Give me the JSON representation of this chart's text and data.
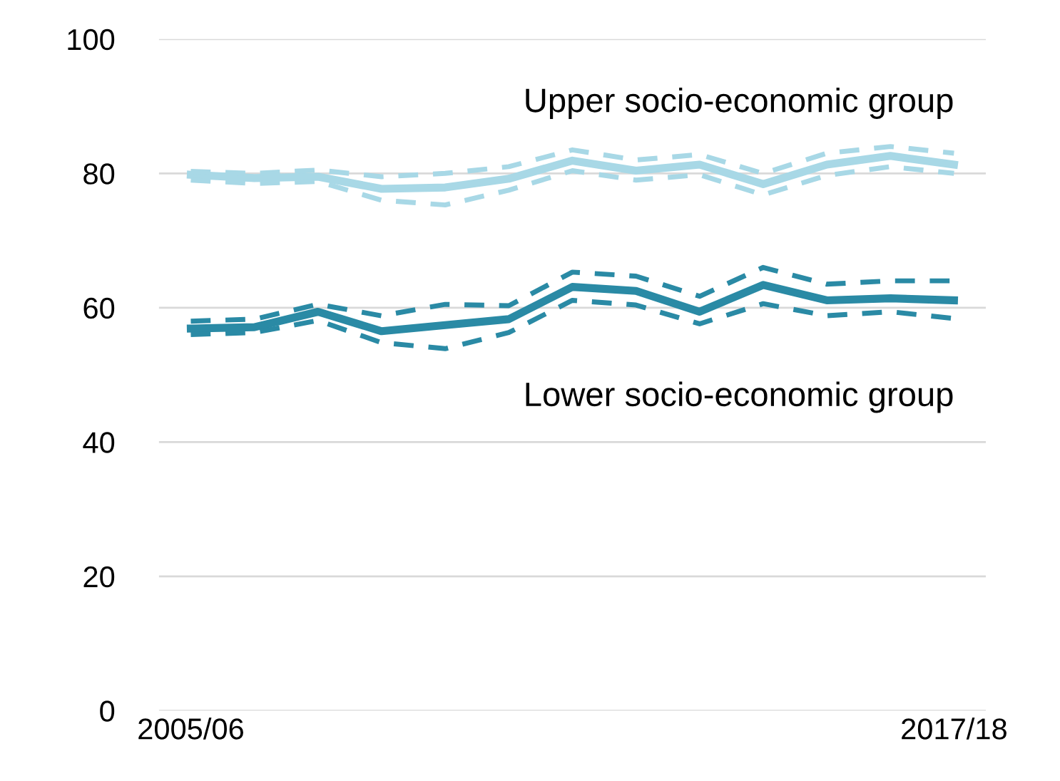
{
  "chart_data": {
    "type": "line",
    "categories": [
      "2005/06",
      null,
      null,
      null,
      null,
      null,
      null,
      null,
      null,
      null,
      null,
      null,
      "2017/18"
    ],
    "series": [
      {
        "name": "Upper socio-economic group",
        "color": "#a8d8e6",
        "values": [
          79.8,
          79.3,
          79.5,
          77.7,
          77.9,
          79.2,
          81.9,
          80.4,
          81.3,
          78.4,
          81.3,
          82.6,
          81.3
        ]
      },
      {
        "color": "#a8d8e6",
        "line_style": "dashed",
        "values": [
          80.3,
          80.0,
          80.5,
          79.5,
          80.0,
          81.0,
          83.5,
          82.0,
          82.8,
          80.0,
          83.0,
          84.0,
          83.0
        ]
      },
      {
        "color": "#a8d8e6",
        "line_style": "dashed",
        "values": [
          79.0,
          78.5,
          78.8,
          76.0,
          75.3,
          77.5,
          80.4,
          79.0,
          79.8,
          76.8,
          79.7,
          81.0,
          80.0
        ]
      },
      {
        "name": "Lower socio-economic group",
        "color": "#2a8aa5",
        "values": [
          56.9,
          57.1,
          59.4,
          56.5,
          57.4,
          58.3,
          63.1,
          62.5,
          59.4,
          63.4,
          61.1,
          61.4,
          61.1
        ]
      },
      {
        "color": "#2a8aa5",
        "line_style": "dashed",
        "values": [
          58.0,
          58.3,
          60.5,
          58.8,
          60.5,
          60.3,
          65.3,
          64.7,
          61.7,
          66.0,
          63.5,
          64.0,
          64.0
        ]
      },
      {
        "color": "#2a8aa5",
        "line_style": "dashed",
        "values": [
          56.0,
          56.3,
          58.1,
          54.8,
          53.9,
          56.3,
          61.1,
          60.4,
          57.6,
          60.6,
          58.8,
          59.4,
          58.4
        ]
      }
    ],
    "ylim": [
      0,
      100
    ],
    "yticks": [
      0,
      20,
      40,
      60,
      80,
      100
    ],
    "grid": "y",
    "line_style": "solid",
    "marker": "none",
    "legend": false
  }
}
